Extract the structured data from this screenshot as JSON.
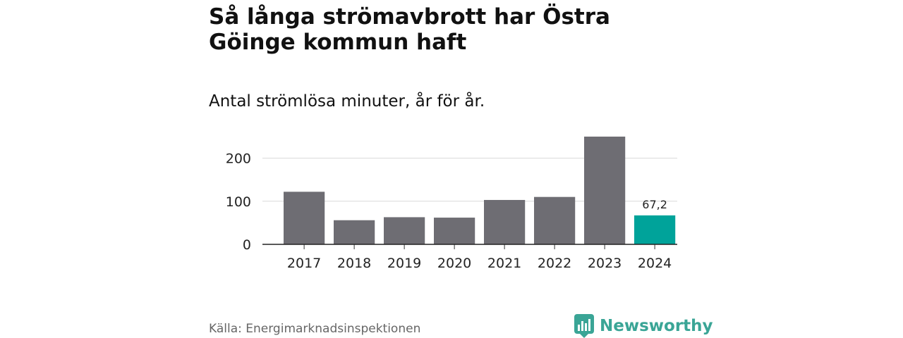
{
  "header": {
    "title": "Så långa strömavbrott har Östra Göinge kommun haft",
    "subtitle": "Antal strömlösa minuter, år för år."
  },
  "footer": {
    "source": "Källa: Energimarknadsinspektionen",
    "brand": "Newsworthy"
  },
  "colors": {
    "bar": "#6e6d73",
    "highlight": "#00a39a",
    "brand": "#3aa596"
  },
  "chart_data": {
    "type": "bar",
    "title": "Så långa strömavbrott har Östra Göinge kommun haft",
    "subtitle": "Antal strömlösa minuter, år för år.",
    "categories": [
      "2017",
      "2018",
      "2019",
      "2020",
      "2021",
      "2022",
      "2023",
      "2024"
    ],
    "values": [
      122,
      56,
      63,
      62,
      103,
      110,
      250,
      67.2
    ],
    "highlight_index": 7,
    "data_labels": [
      {
        "index": 7,
        "text": "67,2"
      }
    ],
    "ylim": [
      0,
      250
    ],
    "yticks": [
      0,
      100,
      200
    ],
    "ytick_labels": [
      "0",
      "100",
      "200"
    ],
    "grid": true,
    "xlabel": "",
    "ylabel": ""
  }
}
